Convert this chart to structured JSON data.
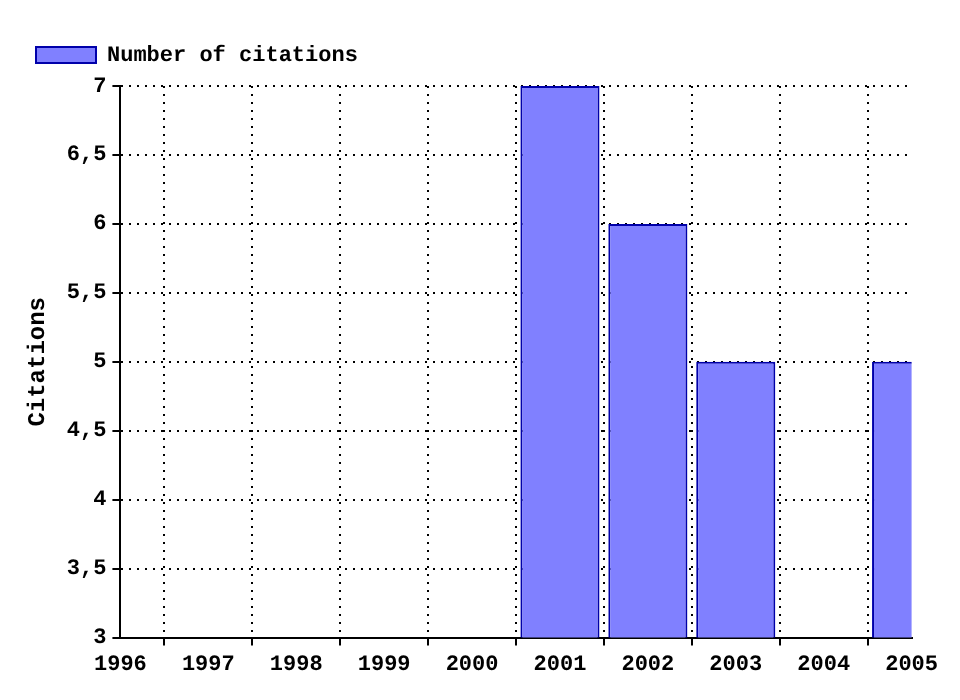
{
  "chart_data": {
    "type": "bar",
    "ylabel": "Citations",
    "x": [
      2001,
      2002,
      2003,
      2005
    ],
    "series": [
      {
        "name": "Number of citations",
        "color": "#8080ff",
        "values": [
          7,
          6,
          5,
          5
        ]
      }
    ],
    "xlim": [
      1996,
      2005
    ],
    "xticks": [
      1996,
      1997,
      1998,
      1999,
      2000,
      2001,
      2002,
      2003,
      2004,
      2005
    ],
    "ylim": [
      3,
      7
    ],
    "yticks": [
      3,
      {
        "value": 3.5,
        "label": "3,5"
      },
      4,
      {
        "value": 4.5,
        "label": "4,5"
      },
      5,
      {
        "value": 5.5,
        "label": "5,5"
      },
      6,
      {
        "value": 6.5,
        "label": "6,5"
      },
      7
    ],
    "grid": true,
    "legend": "top left"
  }
}
